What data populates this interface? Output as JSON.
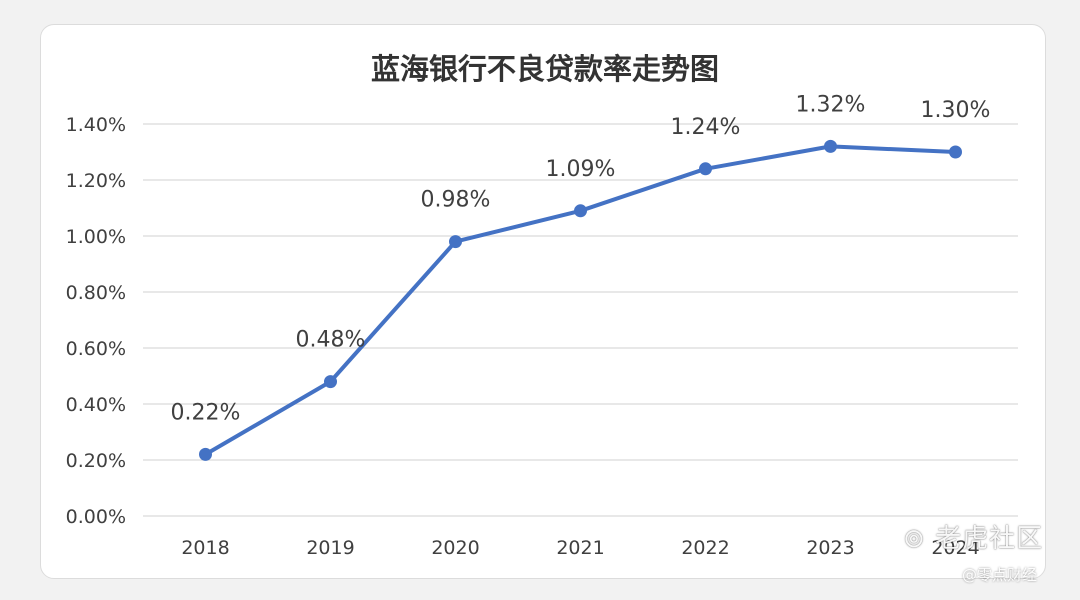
{
  "colors": {
    "line": "#4472c4",
    "grid": "#d9d9d9",
    "text": "#404040",
    "title": "#333333"
  },
  "watermark": {
    "logo_text": "老虎社区",
    "handle": "@零点财经"
  },
  "chart_data": {
    "type": "line",
    "title": "蓝海银行不良贷款率走势图",
    "xlabel": "",
    "ylabel": "",
    "categories": [
      "2018",
      "2019",
      "2020",
      "2021",
      "2022",
      "2023",
      "2024"
    ],
    "series": [
      {
        "values": [
          0.22,
          0.48,
          0.98,
          1.09,
          1.24,
          1.32,
          1.3
        ],
        "labels": [
          "0.22%",
          "0.48%",
          "0.98%",
          "1.09%",
          "1.24%",
          "1.32%",
          "1.30%"
        ]
      }
    ],
    "y_ticks": [
      "0.00%",
      "0.20%",
      "0.40%",
      "0.60%",
      "0.80%",
      "1.00%",
      "1.20%",
      "1.40%"
    ],
    "ylim": [
      0,
      1.4
    ],
    "grid": true,
    "legend": "none"
  }
}
